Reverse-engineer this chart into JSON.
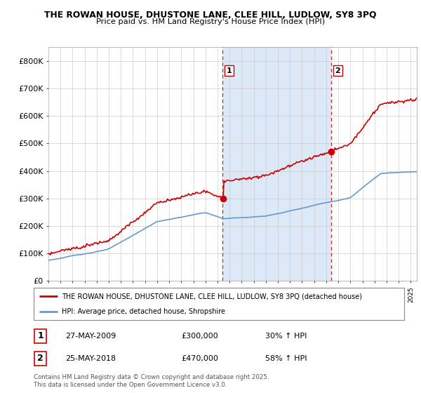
{
  "title1": "THE ROWAN HOUSE, DHUSTONE LANE, CLEE HILL, LUDLOW, SY8 3PQ",
  "title2": "Price paid vs. HM Land Registry's House Price Index (HPI)",
  "ylim": [
    0,
    850000
  ],
  "yticks": [
    0,
    100000,
    200000,
    300000,
    400000,
    500000,
    600000,
    700000,
    800000
  ],
  "ytick_labels": [
    "£0",
    "£100K",
    "£200K",
    "£300K",
    "£400K",
    "£500K",
    "£600K",
    "£700K",
    "£800K"
  ],
  "property_color": "#cc0000",
  "hpi_color": "#6699cc",
  "fill_color": "#dce8f5",
  "sale1_x": 2009.42,
  "sale1_price": 300000,
  "sale2_x": 2018.42,
  "sale2_price": 470000,
  "legend_line1": "THE ROWAN HOUSE, DHUSTONE LANE, CLEE HILL, LUDLOW, SY8 3PQ (detached house)",
  "legend_line2": "HPI: Average price, detached house, Shropshire",
  "note1_date": "27-MAY-2009",
  "note1_price": "£300,000",
  "note1_hpi": "30% ↑ HPI",
  "note2_date": "25-MAY-2018",
  "note2_price": "£470,000",
  "note2_hpi": "58% ↑ HPI",
  "footer": "Contains HM Land Registry data © Crown copyright and database right 2025.\nThis data is licensed under the Open Government Licence v3.0.",
  "xmin": 1995.0,
  "xmax": 2025.5
}
